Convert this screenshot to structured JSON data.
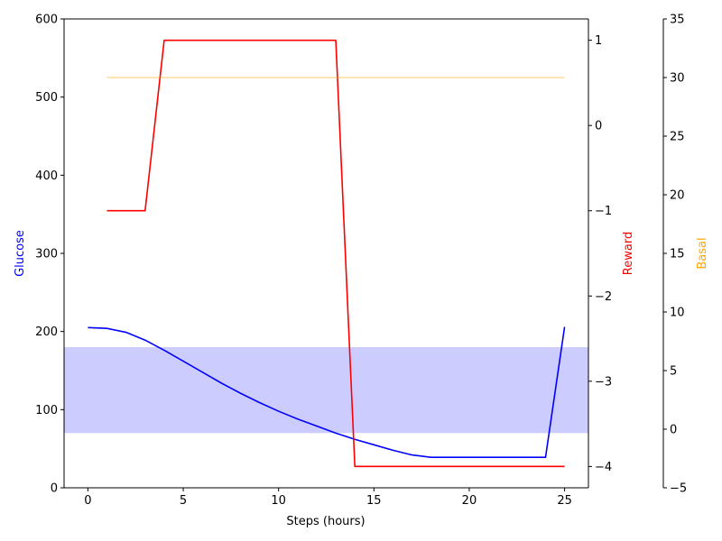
{
  "chart_data": {
    "type": "line",
    "xlabel": "Steps (hours)",
    "xlim": [
      -1.25,
      26.25
    ],
    "xticks": [
      0,
      5,
      10,
      15,
      20,
      25
    ],
    "axes": {
      "glucose": {
        "label": "Glucose",
        "color": "#0000ff",
        "ylim": [
          0,
          600
        ],
        "ticks": [
          0,
          100,
          200,
          300,
          400,
          500,
          600
        ]
      },
      "reward": {
        "label": "Reward",
        "color": "#ff0000",
        "ylim": [
          -4.25,
          1.25
        ],
        "ticks": [
          -4,
          -3,
          -2,
          -1,
          0,
          1
        ]
      },
      "basal": {
        "label": "Basal",
        "color": "#ffa500",
        "ylim": [
          -5,
          35
        ],
        "ticks": [
          -5,
          0,
          5,
          10,
          15,
          20,
          25,
          30,
          35
        ]
      }
    },
    "target_band": {
      "ymin": 70,
      "ymax": 180,
      "color": "#0000ff",
      "opacity": 0.2,
      "axis": "glucose"
    },
    "series": [
      {
        "axis": "glucose",
        "color": "#0000ff",
        "x": [
          0,
          1,
          2,
          3,
          4,
          5,
          6,
          7,
          8,
          9,
          10,
          11,
          12,
          13,
          14,
          15,
          16,
          17,
          18,
          19,
          20,
          21,
          22,
          23,
          24,
          25
        ],
        "values": [
          205,
          204,
          199,
          189,
          176,
          162,
          148,
          134,
          121,
          109,
          98,
          88,
          79,
          70,
          62,
          55,
          48,
          42,
          39,
          39,
          39,
          39,
          39,
          39,
          39,
          206
        ]
      },
      {
        "axis": "reward",
        "color": "#ff0000",
        "x": [
          1,
          2,
          3,
          4,
          5,
          6,
          7,
          8,
          9,
          10,
          11,
          12,
          13,
          14,
          15,
          16,
          17,
          18,
          19,
          20,
          21,
          22,
          23,
          24,
          25
        ],
        "values": [
          -1,
          -1,
          -1,
          1,
          1,
          1,
          1,
          1,
          1,
          1,
          1,
          1,
          1,
          -4,
          -4,
          -4,
          -4,
          -4,
          -4,
          -4,
          -4,
          -4,
          -4,
          -4,
          -4
        ]
      },
      {
        "axis": "basal",
        "color": "#ffa500",
        "opacity": 0.4,
        "x": [
          1,
          25
        ],
        "values": [
          30,
          30
        ]
      }
    ]
  }
}
